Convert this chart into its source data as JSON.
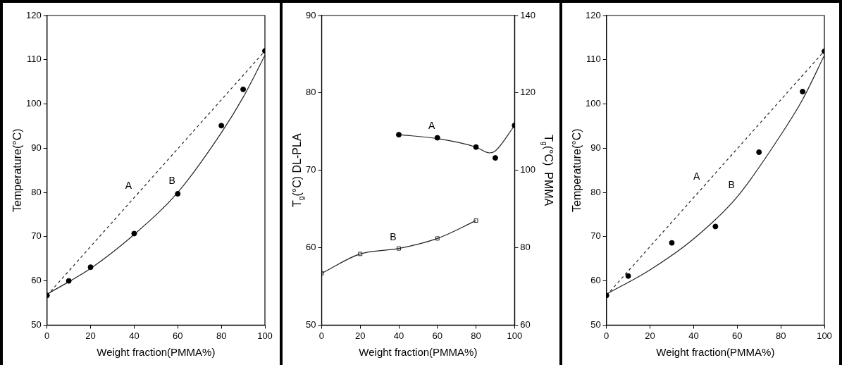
{
  "chart_data": [
    {
      "type": "line",
      "xlabel": "Weight fraction(PMMA%)",
      "ylabel": "Temperature(°C)",
      "xlim": [
        0,
        100
      ],
      "xticks": [
        0,
        20,
        40,
        60,
        80,
        100
      ],
      "ylim": [
        50,
        120
      ],
      "yticks": [
        50,
        60,
        70,
        80,
        90,
        100,
        110,
        120
      ],
      "grid": false,
      "legend": false,
      "series": [
        {
          "type": "line",
          "color": "#222222",
          "line_style": "dashed",
          "marker": "none",
          "x": [
            0,
            100
          ],
          "values": [
            56.7,
            112
          ]
        },
        {
          "type": "line",
          "color": "#222222",
          "line_style": "solid",
          "marker": "none",
          "x": [
            0,
            10,
            20,
            40,
            60,
            80,
            90,
            100
          ],
          "values": [
            57,
            59.8,
            62.8,
            70.5,
            80,
            93.5,
            101.5,
            111
          ]
        },
        {
          "type": "scatter",
          "color": "#000000",
          "marker": "circle",
          "x": [
            0,
            10,
            20,
            40,
            60,
            80,
            90,
            100
          ],
          "values": [
            56.7,
            60,
            63.1,
            70.7,
            79.7,
            95.1,
            103.3,
            112
          ]
        }
      ],
      "annotations": [
        {
          "text": "A",
          "x": 40,
          "y": 78.8
        },
        {
          "text": "B",
          "x": 60,
          "y": 80
        }
      ]
    },
    {
      "type": "line",
      "xlabel": "Weight fraction(PMMA%)",
      "ylabel": "T$_{g}$(°C) DL-PLA",
      "y2label": "T$_{g}$(°C)  PMMA",
      "xlim": [
        0,
        100
      ],
      "xticks": [
        0,
        20,
        40,
        60,
        80,
        100
      ],
      "ylim": [
        50,
        90
      ],
      "yticks": [
        50,
        60,
        70,
        80,
        90
      ],
      "y2lim": [
        60,
        140
      ],
      "y2ticks": [
        60,
        80,
        100,
        120,
        140
      ],
      "grid": false,
      "legend": false,
      "series": [
        {
          "type": "line",
          "axis": "y2",
          "color": "#222222",
          "line_style": "solid",
          "marker": "none",
          "x": [
            40,
            60,
            80,
            87,
            90,
            100
          ],
          "values": [
            109.2,
            108.2,
            106,
            104.5,
            105,
            111.6
          ]
        },
        {
          "type": "scatter",
          "axis": "y2",
          "color": "#000000",
          "marker": "circle",
          "x": [
            40,
            60,
            80,
            90,
            100
          ],
          "values": [
            109.2,
            108.4,
            106,
            103.2,
            111.6
          ]
        },
        {
          "type": "line",
          "color": "#222222",
          "line_style": "solid",
          "marker": "square",
          "x": [
            0,
            20,
            40,
            60,
            80
          ],
          "values": [
            56.7,
            59.2,
            59.9,
            61.2,
            63.5
          ]
        }
      ],
      "annotations": [
        {
          "text": "A",
          "x": 60,
          "y": 74.2
        },
        {
          "text": "B",
          "x": 40,
          "y": 59.9
        }
      ]
    },
    {
      "type": "line",
      "xlabel": "Weight fraction(PMMA%)",
      "ylabel": "Temperature(°C)",
      "xlim": [
        0,
        100
      ],
      "xticks": [
        0,
        20,
        40,
        60,
        80,
        100
      ],
      "ylim": [
        50,
        120
      ],
      "yticks": [
        50,
        60,
        70,
        80,
        90,
        100,
        110,
        120
      ],
      "grid": false,
      "legend": false,
      "series": [
        {
          "type": "line",
          "color": "#222222",
          "line_style": "dashed",
          "marker": "none",
          "x": [
            0,
            100
          ],
          "values": [
            56.7,
            112
          ]
        },
        {
          "type": "line",
          "color": "#222222",
          "line_style": "solid",
          "marker": "none",
          "x": [
            0,
            20,
            40,
            60,
            80,
            90,
            100
          ],
          "values": [
            57,
            62.5,
            69.5,
            79,
            93,
            101,
            111
          ]
        },
        {
          "type": "scatter",
          "color": "#000000",
          "marker": "circle",
          "x": [
            0,
            10,
            30,
            50,
            70,
            90,
            100
          ],
          "values": [
            56.7,
            61.1,
            68.6,
            72.3,
            89.1,
            102.8,
            111.9
          ]
        }
      ],
      "annotations": [
        {
          "text": "A",
          "x": 44,
          "y": 81
        },
        {
          "text": "B",
          "x": 60,
          "y": 79
        }
      ]
    }
  ]
}
